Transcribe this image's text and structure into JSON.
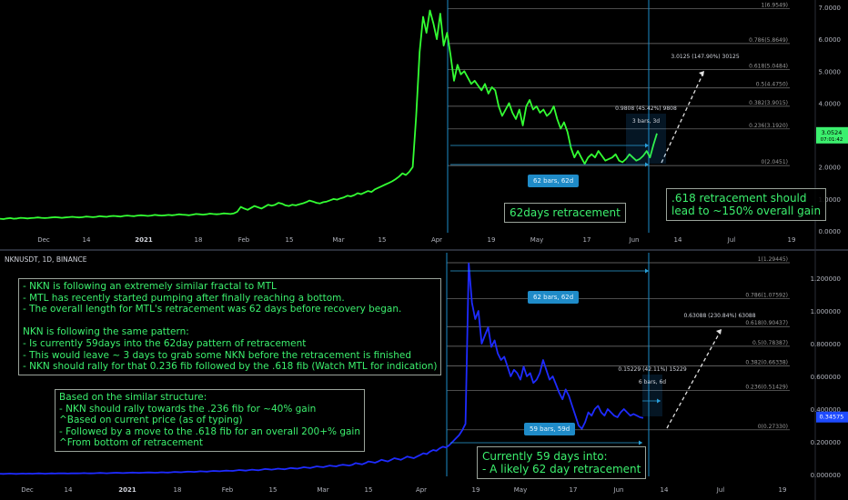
{
  "colors": {
    "mtl_line": "#33ff33",
    "nkn_line": "#1e2bff",
    "fib_line": "#8a8a8a",
    "vline": "#1b8cc8",
    "bg": "#000000"
  },
  "symbol_label": "NKNUSDT, 1D, BINANCE",
  "top": {
    "x_ticks": [
      "Dec",
      "14",
      "2021",
      "18",
      "Feb",
      "15",
      "Mar",
      "15",
      "Apr",
      "19",
      "May",
      "17",
      "Jun",
      "14",
      "Jul",
      "19"
    ],
    "y_ticks": [
      "0.0000",
      "1.0000",
      "2.0000",
      "3.0000",
      "4.0000",
      "5.0000",
      "6.0000",
      "7.0000"
    ],
    "fib_labels": [
      "1(6.9549)",
      "0.786(5.8649)",
      "0.618(5.0484)",
      "0.5(4.4750)",
      "0.382(3.9015)",
      "0.236(3.1920)",
      "0(2.0451)"
    ],
    "price_tag": "3.0524",
    "price_tag_sub": "07:01:42",
    "tag_62": "62 bars, 62d",
    "measure_label": "0.9808 (45.42%) 9808",
    "measure_bars": "3 bars, 3d",
    "projection_label": "3.0125 (147.90%) 30125",
    "note_62days": "62days retracement",
    "note_618": ".618 retracement should\nlead to ~150% overall gain"
  },
  "bottom": {
    "x_ticks": [
      "Dec",
      "14",
      "2021",
      "18",
      "Feb",
      "15",
      "Mar",
      "15",
      "Apr",
      "19",
      "May",
      "17",
      "Jun",
      "14",
      "Jul",
      "19"
    ],
    "y_ticks": [
      "0.000000",
      "0.200000",
      "0.400000",
      "0.600000",
      "0.800000",
      "1.000000",
      "1.200000"
    ],
    "fib_labels": [
      "1(1.29445)",
      "0.786(1.07592)",
      "0.618(0.90437)",
      "0.5(0.78387)",
      "0.382(0.66338)",
      "0.236(0.51429)",
      "0(0.27330)"
    ],
    "price_tag": "0.34575",
    "tag_62": "62 bars, 62d",
    "tag_59": "59 bars, 59d",
    "measure_label": "0.15229 (42.11%) 15229",
    "measure_bars": "6 bars, 6d",
    "projection_label": "0.63088 (230.84%) 63088",
    "note_main": "- NKN is following an extremely similar fractal to MTL\n- MTL has recently started pumping after finally reaching a bottom.\n- The overall length for MTL's retracement was 62 days before recovery began.\n\nNKN is following the same pattern:\n- Is currently 59days into the 62day pattern of retracement\n- This would leave ~ 3 days to grab some NKN before the retracement is finished\n- NKN should rally for that 0.236 fib followed by the .618 fib (Watch MTL for indication)",
    "note_structure": "Based on the similar structure:\n- NKN should rally towards the .236 fib for ~40% gain\n^Based on current price (as of typing)\n- Followed by a move to the .618 fib for an overall 200+% gain\n^From bottom of retracement",
    "note_59days": "Currently 59 days into:\n- A likely 62 day retracement"
  },
  "chart_data": [
    {
      "type": "line",
      "symbol": "MTL",
      "ylim": [
        0,
        7
      ],
      "fib_levels": [
        6.9549,
        5.8649,
        5.0484,
        4.475,
        3.9015,
        3.192,
        2.0451
      ],
      "x_index_range": [
        0,
        232
      ],
      "series": [
        {
          "values": [
            0.38,
            0.37,
            0.39,
            0.4,
            0.38,
            0.39,
            0.41,
            0.4,
            0.39,
            0.4,
            0.41,
            0.42,
            0.41,
            0.4,
            0.41,
            0.42,
            0.43,
            0.42,
            0.41,
            0.42,
            0.43,
            0.44,
            0.43,
            0.42,
            0.43,
            0.45,
            0.44,
            0.43,
            0.44,
            0.46,
            0.45,
            0.44,
            0.46,
            0.47,
            0.46,
            0.45,
            0.47,
            0.48,
            0.47,
            0.46,
            0.48,
            0.49,
            0.48,
            0.47,
            0.48,
            0.5,
            0.49,
            0.48,
            0.49,
            0.5,
            0.49,
            0.5,
            0.52,
            0.51,
            0.5,
            0.49,
            0.51,
            0.53,
            0.52,
            0.51,
            0.52,
            0.54,
            0.53,
            0.52,
            0.53,
            0.55,
            0.54,
            0.53,
            0.55,
            0.6,
            0.75,
            0.7,
            0.66,
            0.72,
            0.78,
            0.74,
            0.7,
            0.76,
            0.82,
            0.79,
            0.82,
            0.88,
            0.85,
            0.8,
            0.78,
            0.82,
            0.8,
            0.83,
            0.86,
            0.9,
            0.95,
            0.92,
            0.88,
            0.86,
            0.9,
            0.92,
            0.96,
            1.0,
            0.98,
            1.02,
            1.05,
            1.1,
            1.08,
            1.12,
            1.18,
            1.15,
            1.2,
            1.25,
            1.22,
            1.3,
            1.35,
            1.4,
            1.45,
            1.5,
            1.55,
            1.62,
            1.7,
            1.8,
            1.75,
            1.85,
            2.0,
            3.6,
            5.6,
            6.7,
            6.2,
            6.9,
            6.5,
            6.0,
            6.8,
            5.8,
            6.2,
            5.5,
            4.7,
            5.2,
            4.9,
            5.0,
            4.8,
            4.6,
            4.7,
            4.55,
            4.4,
            4.6,
            4.3,
            4.5,
            4.4,
            3.9,
            3.6,
            3.8,
            4.0,
            3.7,
            3.5,
            3.8,
            3.3,
            3.9,
            4.1,
            3.8,
            3.9,
            3.7,
            3.8,
            3.6,
            3.7,
            3.9,
            3.5,
            3.2,
            3.4,
            3.1,
            2.6,
            2.3,
            2.5,
            2.3,
            2.1,
            2.3,
            2.4,
            2.3,
            2.5,
            2.35,
            2.2,
            2.25,
            2.3,
            2.4,
            2.2,
            2.15,
            2.25,
            2.4,
            2.3,
            2.2,
            2.25,
            2.35,
            2.5,
            2.3,
            2.7,
            3.05
          ]
        }
      ]
    },
    {
      "type": "line",
      "symbol": "NKNUSDT",
      "ylim": [
        0,
        1.3
      ],
      "fib_levels": [
        1.29445,
        1.07592,
        0.90437,
        0.78387,
        0.66338,
        0.51429,
        0.2733
      ],
      "x_index_range": [
        0,
        232
      ],
      "series": [
        {
          "values": [
            0.005,
            0.004,
            0.005,
            0.006,
            0.005,
            0.004,
            0.005,
            0.006,
            0.005,
            0.006,
            0.005,
            0.006,
            0.007,
            0.006,
            0.005,
            0.006,
            0.007,
            0.006,
            0.007,
            0.008,
            0.007,
            0.006,
            0.007,
            0.008,
            0.007,
            0.008,
            0.009,
            0.008,
            0.007,
            0.008,
            0.009,
            0.01,
            0.009,
            0.008,
            0.009,
            0.01,
            0.011,
            0.01,
            0.009,
            0.01,
            0.011,
            0.012,
            0.011,
            0.01,
            0.011,
            0.012,
            0.013,
            0.012,
            0.011,
            0.012,
            0.014,
            0.013,
            0.012,
            0.014,
            0.016,
            0.015,
            0.014,
            0.016,
            0.018,
            0.017,
            0.016,
            0.018,
            0.02,
            0.019,
            0.018,
            0.02,
            0.022,
            0.021,
            0.02,
            0.022,
            0.024,
            0.023,
            0.022,
            0.025,
            0.028,
            0.026,
            0.024,
            0.027,
            0.03,
            0.028,
            0.026,
            0.03,
            0.034,
            0.032,
            0.03,
            0.033,
            0.036,
            0.034,
            0.032,
            0.036,
            0.04,
            0.038,
            0.036,
            0.04,
            0.045,
            0.042,
            0.04,
            0.045,
            0.05,
            0.047,
            0.045,
            0.05,
            0.055,
            0.052,
            0.05,
            0.056,
            0.06,
            0.058,
            0.055,
            0.06,
            0.07,
            0.066,
            0.062,
            0.07,
            0.08,
            0.076,
            0.072,
            0.08,
            0.09,
            0.085,
            0.08,
            0.09,
            0.1,
            0.095,
            0.09,
            0.1,
            0.11,
            0.105,
            0.1,
            0.11,
            0.12,
            0.13,
            0.125,
            0.14,
            0.15,
            0.145,
            0.16,
            0.17,
            0.165,
            0.18,
            0.2,
            0.22,
            0.24,
            0.27,
            0.31,
            1.29,
            1.05,
            0.95,
            1.0,
            0.8,
            0.85,
            0.9,
            0.78,
            0.82,
            0.74,
            0.7,
            0.72,
            0.66,
            0.6,
            0.64,
            0.62,
            0.58,
            0.66,
            0.6,
            0.62,
            0.56,
            0.58,
            0.62,
            0.7,
            0.64,
            0.58,
            0.6,
            0.55,
            0.5,
            0.46,
            0.52,
            0.48,
            0.42,
            0.36,
            0.3,
            0.28,
            0.32,
            0.38,
            0.36,
            0.4,
            0.42,
            0.38,
            0.36,
            0.4,
            0.38,
            0.36,
            0.35,
            0.38,
            0.4,
            0.38,
            0.36,
            0.37,
            0.36,
            0.35,
            0.346
          ]
        }
      ]
    }
  ]
}
